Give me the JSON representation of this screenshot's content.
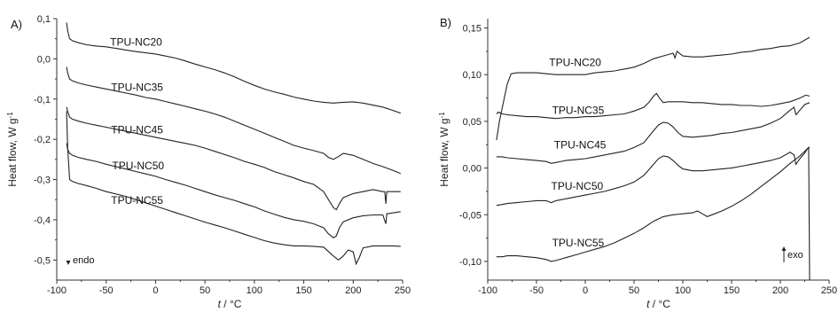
{
  "chart_data": [
    {
      "panel": "A)",
      "type": "line",
      "xlabel_italic": "t",
      "xlabel_unit": " / °C",
      "ylabel": "Heat flow, W g",
      "ylabel_sup": "-1",
      "xlim": [
        -100,
        250
      ],
      "ylim": [
        -0.55,
        0.1
      ],
      "xticks": [
        -100,
        -50,
        0,
        50,
        100,
        150,
        200,
        250
      ],
      "yticks": [
        -0.5,
        -0.4,
        -0.3,
        -0.2,
        -0.1,
        0.0,
        0.1
      ],
      "ytick_labels": [
        "-0,5",
        "-0,4",
        "-0,3",
        "-0,2",
        "-0,1",
        "0,0",
        "0,1"
      ],
      "annotation": "endo",
      "series": [
        {
          "name": "TPU-NC20",
          "label_at": [
            -46,
            0.033
          ],
          "x": [
            -90,
            -89,
            -87,
            -84,
            -78,
            -70,
            -60,
            -50,
            -40,
            -30,
            -20,
            -10,
            0,
            10,
            20,
            30,
            40,
            50,
            60,
            70,
            80,
            90,
            100,
            110,
            120,
            130,
            140,
            150,
            160,
            170,
            180,
            190,
            200,
            210,
            220,
            230,
            240,
            248
          ],
          "y": [
            0.09,
            0.07,
            0.05,
            0.045,
            0.04,
            0.035,
            0.032,
            0.03,
            0.026,
            0.022,
            0.018,
            0.015,
            0.012,
            0.007,
            0.002,
            -0.005,
            -0.013,
            -0.02,
            -0.027,
            -0.035,
            -0.045,
            -0.056,
            -0.066,
            -0.075,
            -0.082,
            -0.088,
            -0.095,
            -0.1,
            -0.105,
            -0.108,
            -0.11,
            -0.108,
            -0.107,
            -0.11,
            -0.115,
            -0.12,
            -0.128,
            -0.135
          ]
        },
        {
          "name": "TPU-NC35",
          "label_at": [
            -45,
            -0.08
          ],
          "x": [
            -90,
            -89,
            -87,
            -84,
            -78,
            -70,
            -60,
            -50,
            -40,
            -30,
            -20,
            -10,
            0,
            10,
            20,
            30,
            40,
            50,
            60,
            70,
            80,
            90,
            100,
            110,
            120,
            130,
            140,
            150,
            160,
            170,
            175,
            180,
            185,
            190,
            200,
            210,
            220,
            230,
            240,
            248
          ],
          "y": [
            -0.02,
            -0.035,
            -0.05,
            -0.055,
            -0.06,
            -0.065,
            -0.07,
            -0.075,
            -0.08,
            -0.085,
            -0.09,
            -0.096,
            -0.1,
            -0.106,
            -0.112,
            -0.118,
            -0.124,
            -0.13,
            -0.137,
            -0.145,
            -0.155,
            -0.165,
            -0.175,
            -0.185,
            -0.195,
            -0.205,
            -0.215,
            -0.222,
            -0.228,
            -0.235,
            -0.245,
            -0.25,
            -0.243,
            -0.235,
            -0.24,
            -0.25,
            -0.26,
            -0.268,
            -0.277,
            -0.285
          ]
        },
        {
          "name": "TPU-NC45",
          "label_at": [
            -45,
            -0.185
          ],
          "x": [
            -90,
            -89,
            -87,
            -84,
            -78,
            -70,
            -60,
            -50,
            -40,
            -30,
            -20,
            -10,
            0,
            10,
            20,
            30,
            40,
            50,
            60,
            70,
            80,
            90,
            100,
            110,
            120,
            130,
            140,
            150,
            160,
            170,
            175,
            180,
            183,
            186,
            190,
            200,
            210,
            220,
            230,
            232,
            233,
            234,
            240,
            248
          ],
          "y": [
            -0.12,
            -0.13,
            -0.145,
            -0.15,
            -0.155,
            -0.16,
            -0.165,
            -0.17,
            -0.175,
            -0.18,
            -0.185,
            -0.19,
            -0.195,
            -0.2,
            -0.205,
            -0.21,
            -0.215,
            -0.222,
            -0.23,
            -0.238,
            -0.246,
            -0.255,
            -0.262,
            -0.27,
            -0.28,
            -0.288,
            -0.296,
            -0.305,
            -0.312,
            -0.33,
            -0.35,
            -0.37,
            -0.375,
            -0.36,
            -0.345,
            -0.335,
            -0.33,
            -0.325,
            -0.33,
            -0.33,
            -0.36,
            -0.33,
            -0.33,
            -0.33
          ]
        },
        {
          "name": "TPU-NC50",
          "label_at": [
            -44,
            -0.275
          ],
          "x": [
            -90,
            -89,
            -87,
            -84,
            -78,
            -70,
            -60,
            -50,
            -40,
            -30,
            -20,
            -10,
            0,
            10,
            20,
            30,
            40,
            50,
            60,
            70,
            80,
            90,
            100,
            110,
            120,
            130,
            140,
            150,
            160,
            170,
            175,
            180,
            183,
            186,
            190,
            200,
            210,
            220,
            230,
            233,
            234,
            235,
            240,
            248
          ],
          "y": [
            -0.21,
            -0.225,
            -0.235,
            -0.24,
            -0.245,
            -0.25,
            -0.255,
            -0.262,
            -0.268,
            -0.274,
            -0.28,
            -0.286,
            -0.292,
            -0.3,
            -0.307,
            -0.314,
            -0.322,
            -0.33,
            -0.338,
            -0.345,
            -0.352,
            -0.36,
            -0.368,
            -0.378,
            -0.386,
            -0.394,
            -0.4,
            -0.404,
            -0.41,
            -0.42,
            -0.435,
            -0.445,
            -0.44,
            -0.42,
            -0.405,
            -0.395,
            -0.39,
            -0.388,
            -0.388,
            -0.41,
            -0.385,
            -0.385,
            -0.383,
            -0.38
          ]
        },
        {
          "name": "TPU-NC55",
          "label_at": [
            -45,
            -0.36
          ],
          "x": [
            -90,
            -89,
            -87,
            -84,
            -78,
            -70,
            -60,
            -50,
            -40,
            -30,
            -20,
            -10,
            0,
            10,
            20,
            30,
            40,
            50,
            60,
            70,
            80,
            90,
            100,
            110,
            120,
            130,
            140,
            150,
            160,
            170,
            180,
            185,
            190,
            195,
            200,
            203,
            206,
            210,
            220,
            230,
            240,
            248
          ],
          "y": [
            -0.13,
            -0.22,
            -0.3,
            -0.305,
            -0.31,
            -0.315,
            -0.322,
            -0.33,
            -0.336,
            -0.342,
            -0.35,
            -0.358,
            -0.366,
            -0.374,
            -0.382,
            -0.39,
            -0.398,
            -0.406,
            -0.413,
            -0.42,
            -0.428,
            -0.436,
            -0.444,
            -0.452,
            -0.458,
            -0.462,
            -0.465,
            -0.465,
            -0.466,
            -0.468,
            -0.49,
            -0.5,
            -0.49,
            -0.475,
            -0.48,
            -0.51,
            -0.495,
            -0.47,
            -0.465,
            -0.465,
            -0.465,
            -0.466
          ]
        }
      ]
    },
    {
      "panel": "B)",
      "type": "line",
      "xlabel_italic": "t",
      "xlabel_unit": " / °C",
      "ylabel": "Heat flow, W g",
      "ylabel_sup": "-1",
      "xlim": [
        -100,
        250
      ],
      "ylim": [
        -0.12,
        0.16
      ],
      "xticks": [
        -100,
        -50,
        0,
        50,
        100,
        150,
        200,
        250
      ],
      "yticks": [
        -0.1,
        -0.05,
        0.0,
        0.05,
        0.1,
        0.15
      ],
      "ytick_labels": [
        "-0,10",
        "-0,05",
        "0,00",
        "0,05",
        "0,10",
        "0,15"
      ],
      "annotation": "exo",
      "series": [
        {
          "name": "TPU-NC20",
          "label_at": [
            -37,
            0.109
          ],
          "x": [
            -91,
            -88,
            -84,
            -80,
            -76,
            -70,
            -60,
            -50,
            -40,
            -30,
            -20,
            -10,
            0,
            10,
            20,
            30,
            40,
            50,
            60,
            70,
            80,
            90,
            92,
            94,
            100,
            110,
            120,
            130,
            140,
            150,
            160,
            170,
            180,
            190,
            200,
            210,
            220,
            230
          ],
          "y": [
            0.03,
            0.05,
            0.07,
            0.09,
            0.101,
            0.102,
            0.102,
            0.102,
            0.101,
            0.1,
            0.1,
            0.1,
            0.1,
            0.102,
            0.103,
            0.104,
            0.106,
            0.108,
            0.112,
            0.117,
            0.12,
            0.123,
            0.118,
            0.125,
            0.12,
            0.119,
            0.119,
            0.12,
            0.121,
            0.122,
            0.124,
            0.125,
            0.127,
            0.128,
            0.13,
            0.131,
            0.134,
            0.14
          ]
        },
        {
          "name": "TPU-NC35",
          "label_at": [
            -34,
            0.058
          ],
          "x": [
            -91,
            -89,
            -85,
            -80,
            -70,
            -60,
            -50,
            -40,
            -30,
            -20,
            -10,
            0,
            10,
            20,
            30,
            40,
            50,
            60,
            65,
            70,
            73,
            76,
            80,
            85,
            90,
            100,
            110,
            120,
            130,
            140,
            150,
            160,
            170,
            180,
            190,
            200,
            210,
            220,
            226,
            230
          ],
          "y": [
            0.058,
            0.06,
            0.058,
            0.057,
            0.056,
            0.055,
            0.055,
            0.054,
            0.053,
            0.054,
            0.054,
            0.055,
            0.055,
            0.056,
            0.057,
            0.058,
            0.061,
            0.065,
            0.07,
            0.077,
            0.08,
            0.075,
            0.07,
            0.071,
            0.071,
            0.071,
            0.07,
            0.07,
            0.069,
            0.068,
            0.068,
            0.067,
            0.067,
            0.066,
            0.067,
            0.069,
            0.071,
            0.075,
            0.078,
            0.077
          ]
        },
        {
          "name": "TPU-NC45",
          "label_at": [
            -32,
            0.021
          ],
          "x": [
            -91,
            -85,
            -80,
            -70,
            -60,
            -50,
            -40,
            -35,
            -30,
            -20,
            -10,
            0,
            10,
            20,
            30,
            40,
            50,
            60,
            70,
            75,
            80,
            85,
            90,
            95,
            100,
            110,
            120,
            130,
            140,
            150,
            160,
            170,
            180,
            190,
            200,
            210,
            214,
            216,
            220,
            225,
            230
          ],
          "y": [
            0.012,
            0.012,
            0.011,
            0.01,
            0.009,
            0.008,
            0.007,
            0.005,
            0.006,
            0.008,
            0.009,
            0.01,
            0.012,
            0.014,
            0.016,
            0.018,
            0.022,
            0.027,
            0.04,
            0.046,
            0.049,
            0.048,
            0.044,
            0.038,
            0.034,
            0.033,
            0.034,
            0.035,
            0.037,
            0.038,
            0.04,
            0.042,
            0.044,
            0.048,
            0.053,
            0.062,
            0.065,
            0.057,
            0.062,
            0.068,
            0.07
          ]
        },
        {
          "name": "TPU-NC50",
          "label_at": [
            -35,
            -0.023
          ],
          "x": [
            -91,
            -85,
            -80,
            -70,
            -60,
            -50,
            -40,
            -35,
            -30,
            -20,
            -10,
            0,
            10,
            20,
            30,
            40,
            50,
            60,
            70,
            75,
            80,
            85,
            90,
            95,
            100,
            110,
            120,
            130,
            140,
            150,
            160,
            170,
            180,
            190,
            200,
            210,
            214,
            216,
            220,
            225,
            228,
            230
          ],
          "y": [
            -0.04,
            -0.039,
            -0.038,
            -0.037,
            -0.036,
            -0.035,
            -0.035,
            -0.037,
            -0.035,
            -0.033,
            -0.031,
            -0.029,
            -0.027,
            -0.025,
            -0.022,
            -0.019,
            -0.015,
            -0.008,
            0.004,
            0.01,
            0.013,
            0.012,
            0.008,
            0.003,
            -0.001,
            -0.003,
            -0.003,
            -0.002,
            -0.001,
            0.0,
            0.002,
            0.004,
            0.006,
            0.008,
            0.011,
            0.017,
            0.014,
            0.004,
            0.01,
            0.016,
            0.021,
            0.022
          ]
        },
        {
          "name": "TPU-NC55",
          "label_at": [
            -34,
            -0.084
          ],
          "x": [
            -91,
            -85,
            -80,
            -70,
            -60,
            -50,
            -40,
            -35,
            -30,
            -20,
            -10,
            0,
            10,
            20,
            30,
            40,
            50,
            60,
            70,
            80,
            90,
            100,
            110,
            115,
            120,
            125,
            130,
            140,
            150,
            160,
            170,
            180,
            190,
            200,
            210,
            220,
            225,
            229,
            230,
            230.5
          ],
          "y": [
            -0.095,
            -0.095,
            -0.094,
            -0.094,
            -0.095,
            -0.096,
            -0.098,
            -0.1,
            -0.099,
            -0.096,
            -0.093,
            -0.09,
            -0.087,
            -0.084,
            -0.08,
            -0.075,
            -0.07,
            -0.064,
            -0.057,
            -0.052,
            -0.05,
            -0.049,
            -0.048,
            -0.046,
            -0.049,
            -0.052,
            -0.05,
            -0.046,
            -0.041,
            -0.035,
            -0.028,
            -0.02,
            -0.012,
            -0.004,
            0.005,
            0.013,
            0.018,
            0.022,
            -0.12,
            -0.12
          ]
        }
      ]
    }
  ]
}
